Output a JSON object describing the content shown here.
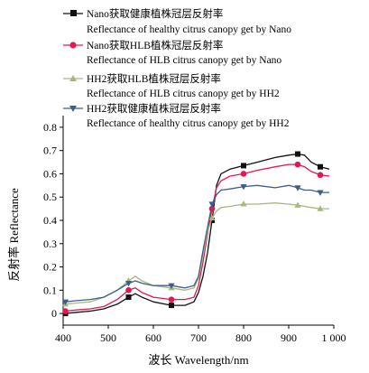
{
  "chart_data": {
    "type": "line",
    "xlabel": "波长 Wavelength/nm",
    "ylabel": "反射率 Reflectance",
    "xlim": [
      400,
      1000
    ],
    "ylim": [
      -0.05,
      0.85
    ],
    "x_ticks": [
      400,
      500,
      600,
      700,
      800,
      900,
      1000
    ],
    "x_tick_labels": [
      "400",
      "500",
      "600",
      "700",
      "800",
      "900",
      "1 000"
    ],
    "y_ticks": [
      0,
      0.1,
      0.2,
      0.3,
      0.4,
      0.5,
      0.6,
      0.7,
      0.8
    ],
    "y_tick_labels": [
      "0",
      "0.1",
      "0.2",
      "0.3",
      "0.4",
      "0.5",
      "0.6",
      "0.7",
      "0.8"
    ],
    "grid": false,
    "legend_position": "top",
    "series": [
      {
        "name_cn": "Nano获取健康植株冠层反射率",
        "name_en": "Reflectance of healthy citrus canopy get by Nano",
        "color": "#111111",
        "marker": "square",
        "x": [
          405,
          430,
          460,
          490,
          520,
          545,
          560,
          575,
          600,
          640,
          670,
          690,
          700,
          710,
          720,
          730,
          740,
          750,
          770,
          800,
          830,
          870,
          900,
          920,
          935,
          950,
          970,
          990
        ],
        "y": [
          0.0,
          0.005,
          0.01,
          0.02,
          0.04,
          0.07,
          0.085,
          0.07,
          0.05,
          0.035,
          0.035,
          0.05,
          0.09,
          0.16,
          0.26,
          0.4,
          0.55,
          0.6,
          0.62,
          0.635,
          0.65,
          0.67,
          0.68,
          0.685,
          0.68,
          0.65,
          0.63,
          0.62
        ]
      },
      {
        "name_cn": "Nano获取HLB植株冠层反射率",
        "name_en": "Reflectance of HLB citrus canopy get by Nano",
        "color": "#e5174f",
        "marker": "circle",
        "x": [
          405,
          430,
          460,
          490,
          520,
          545,
          560,
          575,
          600,
          640,
          670,
          690,
          700,
          710,
          720,
          730,
          740,
          750,
          770,
          800,
          830,
          870,
          900,
          920,
          935,
          950,
          970,
          990
        ],
        "y": [
          0.01,
          0.015,
          0.02,
          0.03,
          0.06,
          0.1,
          0.11,
          0.09,
          0.07,
          0.06,
          0.06,
          0.07,
          0.12,
          0.22,
          0.34,
          0.45,
          0.54,
          0.57,
          0.59,
          0.6,
          0.615,
          0.63,
          0.64,
          0.64,
          0.63,
          0.61,
          0.595,
          0.59
        ]
      },
      {
        "name_cn": "HH2获取HLB植株冠层反射率",
        "name_en": "Reflectance of HLB citrus canopy get by HH2",
        "color": "#a6b87e",
        "marker": "triangle-up",
        "x": [
          405,
          430,
          460,
          490,
          520,
          545,
          560,
          575,
          600,
          640,
          670,
          690,
          700,
          710,
          720,
          730,
          740,
          750,
          770,
          800,
          830,
          870,
          900,
          920,
          935,
          950,
          970,
          990
        ],
        "y": [
          0.04,
          0.045,
          0.05,
          0.07,
          0.1,
          0.14,
          0.16,
          0.14,
          0.12,
          0.11,
          0.1,
          0.11,
          0.15,
          0.25,
          0.35,
          0.41,
          0.44,
          0.455,
          0.46,
          0.47,
          0.47,
          0.475,
          0.47,
          0.465,
          0.46,
          0.455,
          0.45,
          0.45
        ]
      },
      {
        "name_cn": "HH2获取健康植株冠层反射率",
        "name_en": "Reflectance of healthy citrus canopy get by HH2",
        "color": "#3d5d8a",
        "marker": "triangle-down",
        "x": [
          405,
          430,
          460,
          490,
          520,
          545,
          560,
          575,
          600,
          640,
          670,
          690,
          700,
          710,
          720,
          730,
          740,
          750,
          770,
          800,
          830,
          870,
          900,
          920,
          935,
          950,
          970,
          990
        ],
        "y": [
          0.05,
          0.055,
          0.06,
          0.07,
          0.1,
          0.13,
          0.14,
          0.13,
          0.12,
          0.12,
          0.11,
          0.12,
          0.16,
          0.27,
          0.37,
          0.47,
          0.51,
          0.53,
          0.535,
          0.545,
          0.55,
          0.54,
          0.55,
          0.54,
          0.53,
          0.53,
          0.52,
          0.52
        ]
      }
    ]
  }
}
